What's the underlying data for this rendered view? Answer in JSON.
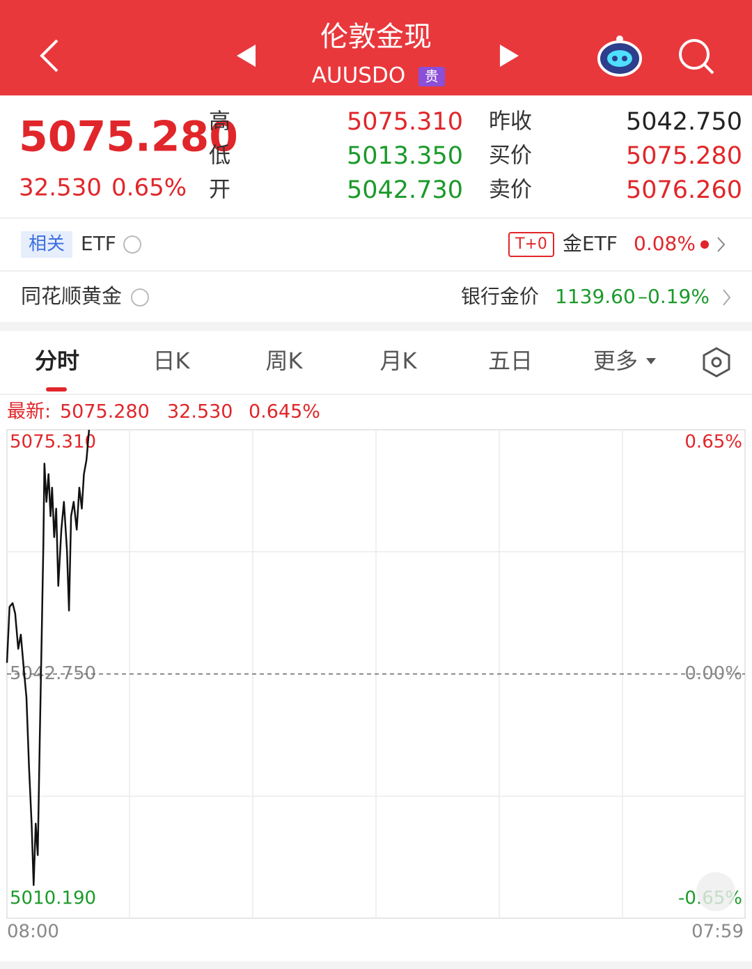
{
  "header": {
    "title": "伦敦金现",
    "code": "AUUSDO",
    "badge": "贵"
  },
  "quote": {
    "price": "5075.280",
    "change": "32.530",
    "change_pct": "0.65%",
    "stats": [
      {
        "label": "高",
        "value": "5075.310"
      },
      {
        "label": "低",
        "value": "5013.350"
      },
      {
        "label": "开",
        "value": "5042.730"
      },
      {
        "label": "昨收",
        "value": "5042.750"
      },
      {
        "label": "买价",
        "value": "5075.280"
      },
      {
        "label": "卖价",
        "value": "5076.260"
      }
    ]
  },
  "etf_row": {
    "tag": "相关",
    "label": "ETF",
    "badge": "T+0",
    "fund": "金ETF",
    "change": "0.08%"
  },
  "gold_row": {
    "label": "同花顺黄金",
    "bank_label": "银行金价",
    "bank_price": "1139.60",
    "bank_change": "–0.19%"
  },
  "tabs": [
    "分时",
    "日K",
    "周K",
    "月K",
    "五日",
    "更多"
  ],
  "latest": {
    "label": "最新:",
    "price": "5075.280",
    "change": "32.530",
    "pct": "0.645%"
  },
  "chart_data": {
    "type": "line",
    "x": [
      0,
      5,
      11,
      16,
      22,
      27,
      33,
      38,
      43,
      48,
      52,
      56,
      60,
      64,
      68,
      71,
      73,
      77,
      81,
      85,
      88,
      92,
      96,
      100,
      106,
      111,
      117,
      121,
      125,
      130,
      136,
      141,
      146,
      150,
      155,
      160
    ],
    "series": [
      {
        "color": "#111111",
        "values": [
          5044.25,
          5051.7,
          5052.2,
          5050.8,
          5046.1,
          5048.0,
          5043.3,
          5039.6,
          5030.3,
          5022.8,
          5014.6,
          5022.8,
          5018.6,
          5034.0,
          5048.9,
          5060.1,
          5070.8,
          5065.7,
          5069.4,
          5063.8,
          5067.6,
          5061.0,
          5064.8,
          5054.5,
          5062.0,
          5065.7,
          5059.2,
          5051.2,
          5063.8,
          5065.7,
          5062.0,
          5067.6,
          5064.8,
          5069.4,
          5071.3,
          5075.31
        ]
      }
    ],
    "xlim": [
      0,
      1439
    ],
    "xticks": [
      {
        "value": 0,
        "label": "08:00"
      },
      {
        "value": 1439,
        "label": "07:59"
      }
    ],
    "ylim": [
      5010.19,
      5075.31
    ],
    "yticks": [
      {
        "value": 5075.31,
        "label": "5075.310"
      },
      {
        "value": 5042.75,
        "label": "5042.750"
      },
      {
        "value": 5010.19,
        "label": "5010.190"
      }
    ],
    "y2lim": [
      -0.65,
      0.65
    ],
    "y2ticks": [
      {
        "value": 0.65,
        "label": "0.65%"
      },
      {
        "value": 0,
        "label": "0.00%"
      },
      {
        "value": -0.65,
        "label": "-0.65%"
      }
    ]
  }
}
